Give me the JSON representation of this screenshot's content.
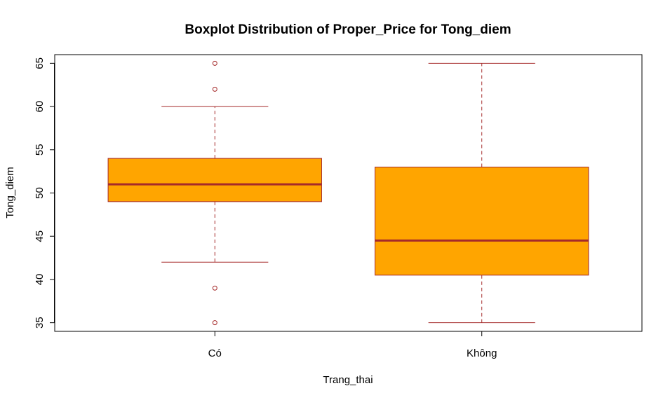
{
  "chart_data": {
    "type": "boxplot",
    "title": "Boxplot Distribution of Proper_Price for Tong_diem",
    "xlabel": "Trang_thai",
    "ylabel": "Tong_diem",
    "ylim": [
      34,
      66
    ],
    "yticks": [
      35,
      40,
      45,
      50,
      55,
      60,
      65
    ],
    "grid": false,
    "legend": "none",
    "colors": {
      "box_fill": "#FFA500",
      "box_border": "#A52A2A",
      "whisker": "#A52A2A",
      "outlier": "#A52A2A"
    },
    "categories": [
      "Có",
      "Không"
    ],
    "boxes": [
      {
        "category": "Có",
        "min": 42,
        "q1": 49,
        "median": 51,
        "q3": 54,
        "max": 60,
        "outliers": [
          65,
          62,
          39,
          35
        ]
      },
      {
        "category": "Không",
        "min": 35,
        "q1": 40.5,
        "median": 44.5,
        "q3": 53,
        "max": 65,
        "outliers": []
      }
    ]
  }
}
